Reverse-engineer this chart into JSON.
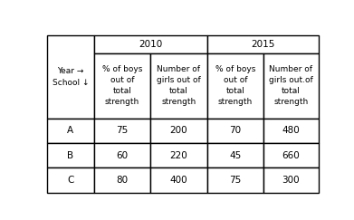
{
  "col_headers_mid": [
    "Year →\nSchool ↓",
    "% of boys\nout of\ntotal\nstrength",
    "Number of\ngirls out of\ntotal\nstrength",
    "% of boys\nout of\ntotal\nstrength",
    "Number of\ngirls out.of\ntotal\nstrength"
  ],
  "year_2010": "2010",
  "year_2015": "2015",
  "rows": [
    [
      "A",
      "75",
      "200",
      "70",
      "480"
    ],
    [
      "B",
      "60",
      "220",
      "45",
      "660"
    ],
    [
      "Ċ",
      "80",
      "400",
      "75",
      "300"
    ]
  ],
  "bg_color": "#ffffff",
  "border_color": "#000000",
  "text_color": "#000000",
  "font_size": 6.5,
  "header_font_size": 7.5
}
